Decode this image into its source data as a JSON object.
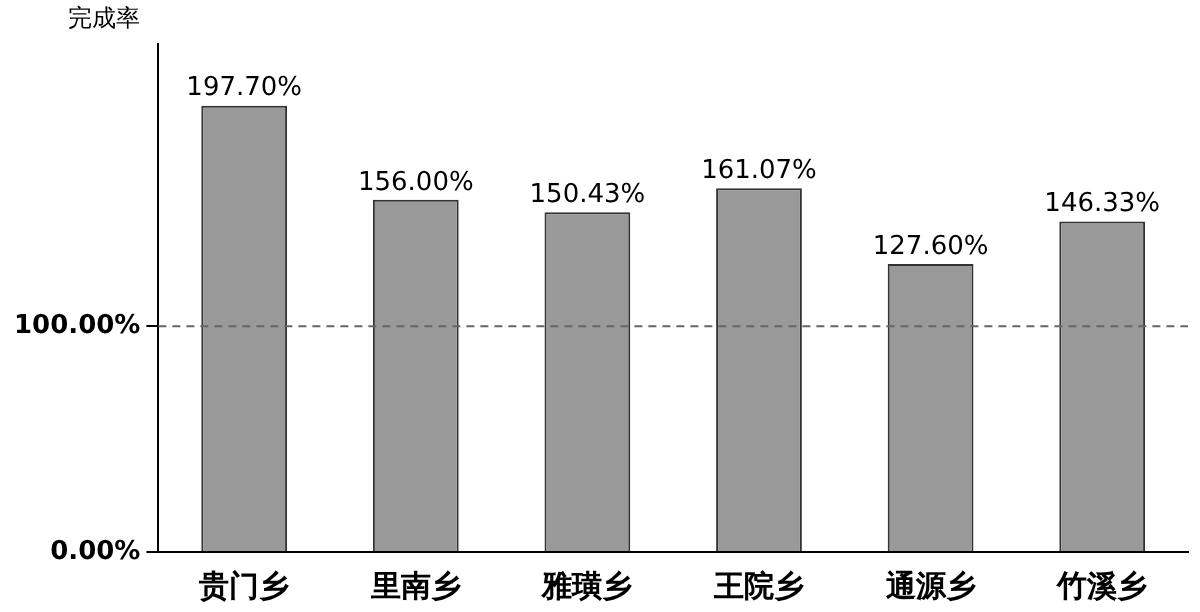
{
  "chart_data": {
    "type": "bar",
    "ylabel": "完成率",
    "categories": [
      "贵门乡",
      "里南乡",
      "雅璜乡",
      "王院乡",
      "通源乡",
      "竹溪乡"
    ],
    "values": [
      197.7,
      156.0,
      150.43,
      161.07,
      127.6,
      146.33
    ],
    "value_labels": [
      "197.70%",
      "156.00%",
      "150.43%",
      "161.07%",
      "127.60%",
      "146.33%"
    ],
    "color": "#999999",
    "ylim": [
      0,
      225
    ],
    "yticks": [
      {
        "value": 0,
        "label": "0.00%"
      },
      {
        "value": 100,
        "label": "100.00%"
      }
    ],
    "ref_lines": [
      {
        "axis": "y",
        "value": 100,
        "color": "#666666",
        "line_style": "dashed"
      }
    ],
    "grid": false,
    "legend": false
  }
}
